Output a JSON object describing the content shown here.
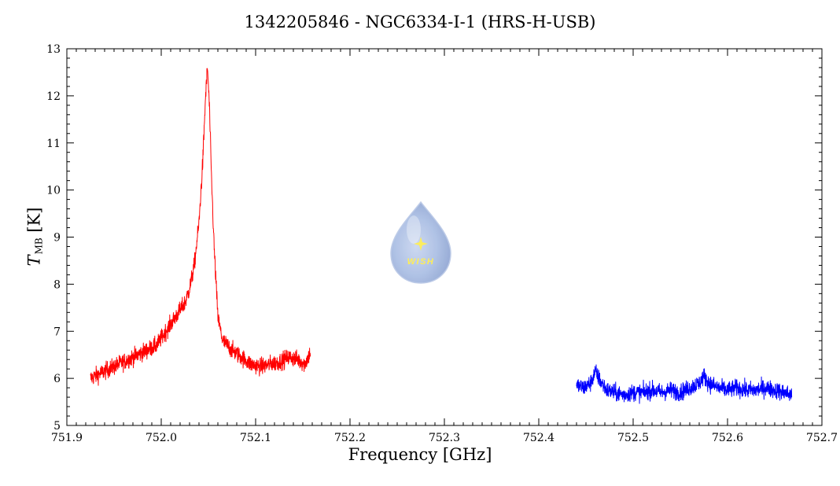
{
  "chart_data": {
    "type": "line",
    "title": "1342205846 - NGC6334-I-1 (HRS-H-USB)",
    "xlabel": "Frequency [GHz]",
    "ylabel_symbol": "T",
    "ylabel_subscript": "MB",
    "ylabel_unit": "[K]",
    "xlim": [
      751.9,
      752.7
    ],
    "ylim": [
      5,
      13
    ],
    "xticks": [
      "751.9",
      "752.0",
      "752.1",
      "752.2",
      "752.3",
      "752.4",
      "752.5",
      "752.6",
      "752.7"
    ],
    "yticks": [
      "5",
      "6",
      "7",
      "8",
      "9",
      "10",
      "11",
      "12",
      "13"
    ],
    "grid": false,
    "series": [
      {
        "color": "#ff0000",
        "x": [
          751.925,
          751.935,
          751.945,
          751.955,
          751.965,
          751.975,
          751.985,
          751.995,
          752.005,
          752.015,
          752.025,
          752.03,
          752.035,
          752.04,
          752.044,
          752.047,
          752.049,
          752.051,
          752.053,
          752.056,
          752.06,
          752.065,
          752.075,
          752.085,
          752.095,
          752.105,
          752.115,
          752.125,
          752.135,
          752.145,
          752.152,
          752.158
        ],
        "y": [
          6.0,
          6.1,
          6.2,
          6.3,
          6.4,
          6.5,
          6.6,
          6.7,
          7.0,
          7.3,
          7.6,
          7.9,
          8.4,
          9.3,
          10.6,
          12.0,
          12.6,
          11.8,
          10.4,
          8.8,
          7.3,
          6.8,
          6.6,
          6.45,
          6.3,
          6.25,
          6.3,
          6.35,
          6.45,
          6.4,
          6.3,
          6.55
        ]
      },
      {
        "color": "#0000ff",
        "x": [
          752.44,
          752.448,
          752.455,
          752.46,
          752.465,
          752.472,
          752.48,
          752.49,
          752.5,
          752.51,
          752.52,
          752.53,
          752.54,
          752.55,
          752.56,
          752.57,
          752.575,
          752.58,
          752.59,
          752.6,
          752.61,
          752.62,
          752.63,
          752.64,
          752.65,
          752.66,
          752.668
        ],
        "y": [
          5.85,
          5.8,
          5.9,
          6.15,
          5.95,
          5.75,
          5.7,
          5.65,
          5.7,
          5.7,
          5.75,
          5.7,
          5.75,
          5.7,
          5.8,
          5.9,
          6.05,
          5.9,
          5.8,
          5.75,
          5.8,
          5.75,
          5.75,
          5.8,
          5.75,
          5.7,
          5.65
        ]
      }
    ]
  },
  "logo": {
    "text": "WISH",
    "color": "#a9bde3",
    "star_color": "#ffee55"
  }
}
